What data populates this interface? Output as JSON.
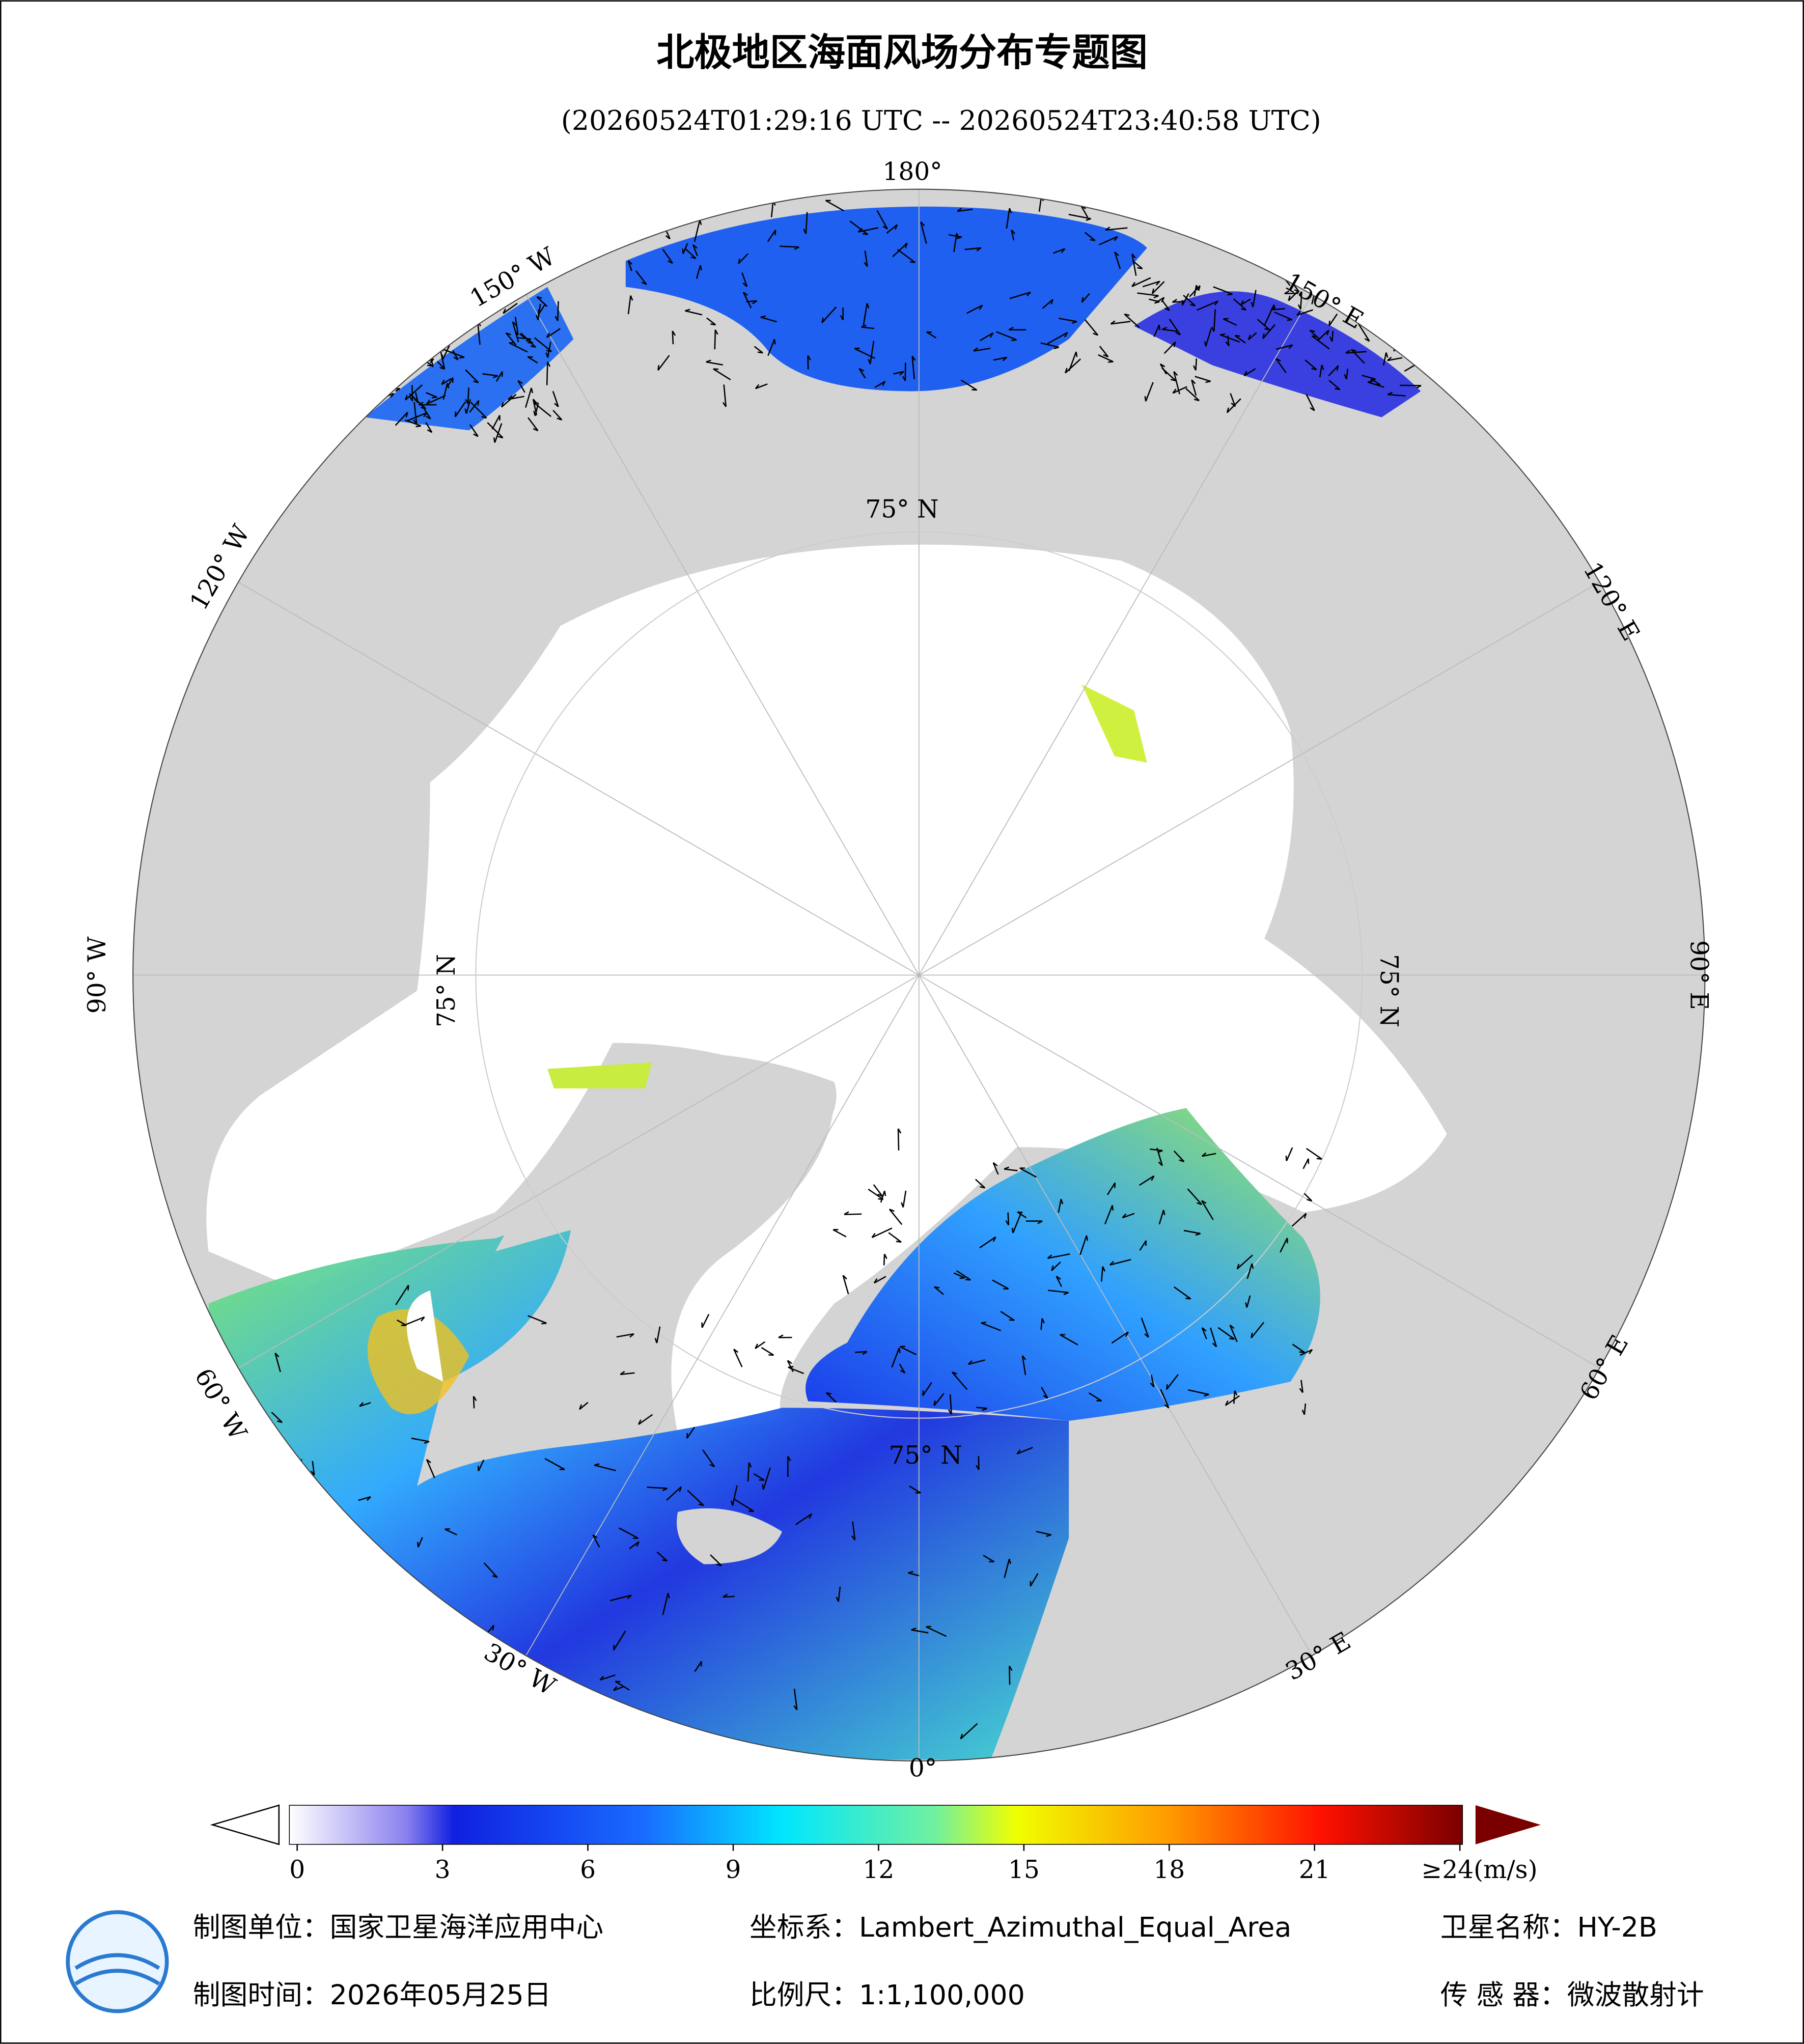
{
  "header": {
    "title": "北极地区海面风场分布专题图",
    "subtitle": "(20260524T01:29:16 UTC -- 20260524T23:40:58 UTC)"
  },
  "map": {
    "meridian_labels": [
      "180°",
      "150° E",
      "120° E",
      "90° E",
      "60° E",
      "30° E",
      "0°",
      "30° W",
      "60° W",
      "90° W",
      "120° W",
      "150° W"
    ],
    "latitude_labels": [
      "75° N",
      "75° N",
      "75° N",
      "75° N"
    ]
  },
  "colorbar": {
    "range": [
      0,
      24
    ],
    "ticks": [
      0,
      3,
      6,
      9,
      12,
      15,
      18,
      21,
      {
        "value": 24,
        "label": "≥24(m/s)"
      }
    ]
  },
  "footer": {
    "unit": "制图单位：国家卫星海洋应用中心",
    "projection": "坐标系：Lambert_Azimuthal_Equal_Area",
    "satellite": "卫星名称：HY-2B",
    "date": "制图时间：2026年05月25日",
    "scale": "比例尺：1:1,100,000",
    "sensor": "传 感 器：微波散射计"
  }
}
